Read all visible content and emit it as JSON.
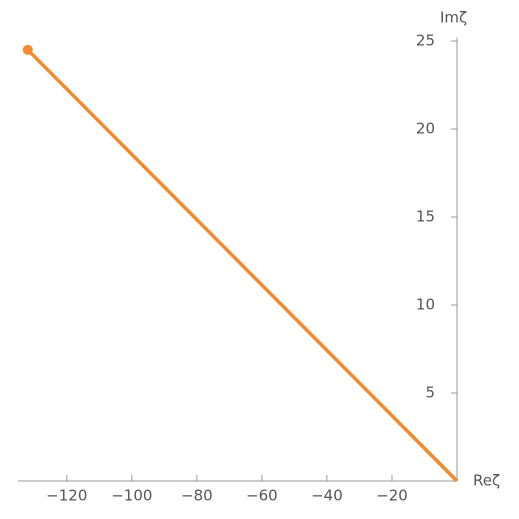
{
  "chart_data": {
    "type": "line",
    "x_label": "Reζ",
    "y_label": "Imζ",
    "x": [
      -132,
      0
    ],
    "series": [
      {
        "color": "#f28a30",
        "values": [
          24.5,
          0
        ]
      }
    ],
    "xlim": [
      -135,
      0
    ],
    "ylim": [
      0,
      25.2
    ],
    "xticks": [
      {
        "value": -120,
        "label": "−120"
      },
      {
        "value": -100,
        "label": "−100"
      },
      {
        "value": -80,
        "label": "−80"
      },
      {
        "value": -60,
        "label": "−60"
      },
      {
        "value": -40,
        "label": "−40"
      },
      {
        "value": -20,
        "label": "−20"
      }
    ],
    "yticks": [
      5,
      10,
      15,
      20,
      25
    ],
    "grid": false
  }
}
